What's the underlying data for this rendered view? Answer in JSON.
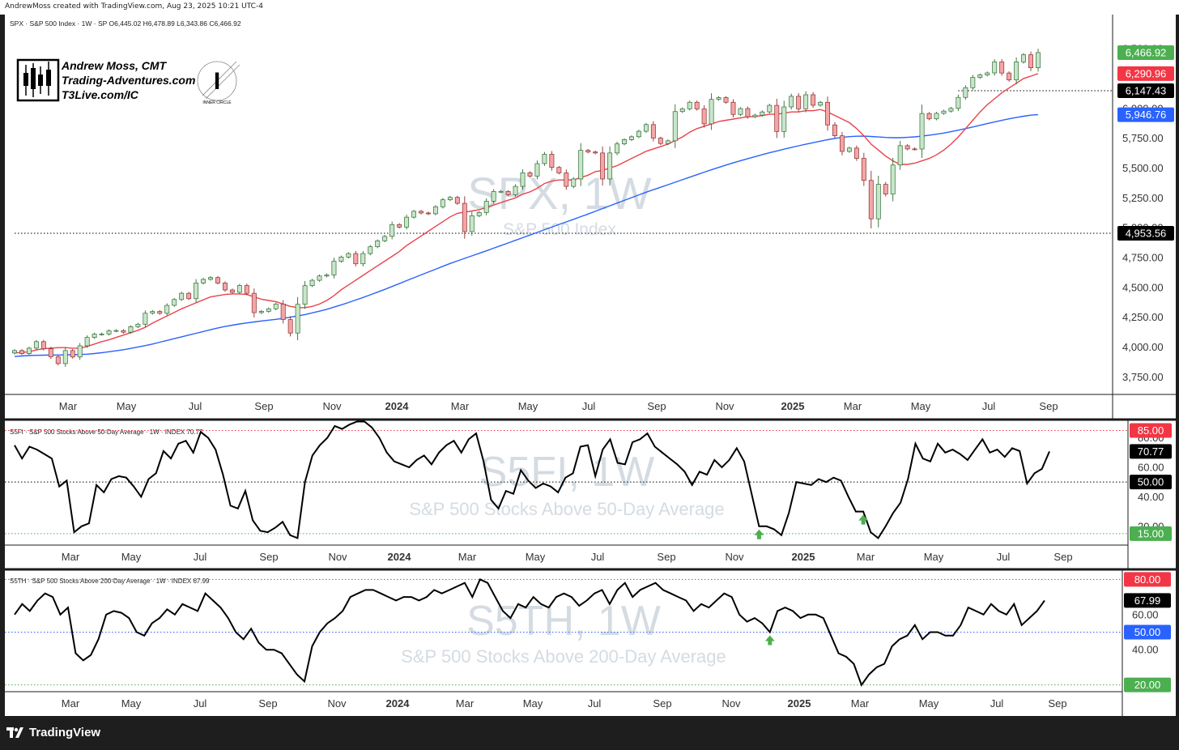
{
  "header_text": "AndrewMoss created with TradingView.com, Aug 23, 2025 10:21 UTC-4",
  "footer_brand": "TradingView",
  "branding": {
    "line1": "Andrew Moss, CMT",
    "line2": "Trading-Adventures.com",
    "line3": "T3Live.com/IC",
    "badge_letter": "I",
    "badge_text": "INNER CIRCLE"
  },
  "x_labels": [
    "Mar",
    "May",
    "Jul",
    "Sep",
    "Nov",
    "2024",
    "Mar",
    "May",
    "Jul",
    "Sep",
    "Nov",
    "2025",
    "Mar",
    "May",
    "Jul",
    "Sep"
  ],
  "x_label_bold": [
    false,
    false,
    false,
    false,
    false,
    true,
    false,
    false,
    false,
    false,
    false,
    true,
    false,
    false,
    false,
    false
  ],
  "colors": {
    "up": "#c8e6c9",
    "down": "#f4a6a6",
    "up_border": "#2f6b33",
    "down_border": "#8b2d2d",
    "sma_red": "#e8434a",
    "sma_blue": "#2962ff",
    "green_tag": "#4caf50",
    "red_tag": "#f23645",
    "blue_tag": "#2962ff",
    "black_tag": "#000000",
    "watermark": "#c9d2db"
  },
  "chart_data": [
    {
      "type": "candlestick",
      "symbol_line": "SPX · S&P 500 Index · 1W · SP  O6,445.02  H6,478.89  L6,343.86  C6,466.92",
      "watermark_title": "SPX, 1W",
      "watermark_subtitle": "S&P 500 Index",
      "y_ticks": [
        "6,500.00",
        "6,000.00",
        "5,750.00",
        "5,500.00",
        "5,250.00",
        "5,000.00",
        "4,750.00",
        "4,500.00",
        "4,250.00",
        "4,000.00",
        "3,750.00"
      ],
      "y_tick_values": [
        6500,
        6000,
        5750,
        5500,
        5250,
        5000,
        4750,
        4500,
        4250,
        4000,
        3750
      ],
      "ylim": [
        3650,
        6650
      ],
      "price_tags": [
        {
          "label": "6,466.92",
          "value": 6466.92,
          "color": "green"
        },
        {
          "label": "6,290.96",
          "value": 6290.96,
          "color": "red"
        },
        {
          "label": "6,147.43",
          "value": 6147.43,
          "color": "black"
        },
        {
          "label": "5,946.76",
          "value": 5946.76,
          "color": "blue"
        },
        {
          "label": "4,953.56",
          "value": 4953.56,
          "color": "black"
        }
      ],
      "levels": [
        {
          "value": 6147.43,
          "from_week": 130
        },
        {
          "value": 4953.56,
          "from_week": 0
        }
      ],
      "closes": [
        3970,
        3945,
        3990,
        4045,
        3985,
        3918,
        3861,
        3970,
        3916,
        4010,
        4080,
        4108,
        4109,
        4136,
        4138,
        4124,
        4170,
        4191,
        4283,
        4298,
        4282,
        4349,
        4398,
        4450,
        4405,
        4536,
        4567,
        4582,
        4536,
        4478,
        4458,
        4515,
        4450,
        4288,
        4299,
        4320,
        4360,
        4230,
        4117,
        4358,
        4514,
        4559,
        4595,
        4604,
        4719,
        4754,
        4783,
        4697,
        4783,
        4840,
        4890,
        4927,
        5026,
        5005,
        5088,
        5137,
        5123,
        5117,
        5175,
        5234,
        5254,
        5204,
        4967,
        5100,
        5127,
        5222,
        5303,
        5304,
        5277,
        5346,
        5460,
        5432,
        5537,
        5615,
        5505,
        5459,
        5346,
        5408,
        5648,
        5634,
        5626,
        5408,
        5626,
        5702,
        5738,
        5762,
        5808,
        5864,
        5751,
        5705,
        5728,
        5973,
        5996,
        6051,
        5995,
        5870,
        6075,
        6090,
        6051,
        5949,
        5998,
        5930,
        5943,
        5970,
        6025,
        5806,
        6012,
        6101,
        5996,
        6114,
        6026,
        6051,
        5861,
        5770,
        5639,
        5667,
        5581,
        5396,
        5074,
        5363,
        5282,
        5525,
        5687,
        5660,
        5659,
        5957,
        5912,
        5958,
        5977,
        6000,
        6092,
        6173,
        6259,
        6280,
        6297,
        6389,
        6296,
        6238,
        6389,
        6449,
        6340,
        6466.92
      ],
      "sma20": [
        3950,
        3955,
        3960,
        3975,
        3985,
        3990,
        3995,
        3995,
        3990,
        3990,
        4005,
        4025,
        4045,
        4060,
        4080,
        4100,
        4120,
        4140,
        4165,
        4200,
        4230,
        4260,
        4290,
        4320,
        4345,
        4370,
        4395,
        4420,
        4430,
        4440,
        4445,
        4445,
        4440,
        4420,
        4400,
        4390,
        4380,
        4360,
        4340,
        4330,
        4330,
        4340,
        4360,
        4390,
        4430,
        4480,
        4520,
        4560,
        4600,
        4640,
        4680,
        4720,
        4760,
        4800,
        4850,
        4890,
        4930,
        4970,
        5010,
        5050,
        5090,
        5120,
        5130,
        5140,
        5150,
        5170,
        5190,
        5210,
        5230,
        5250,
        5280,
        5300,
        5330,
        5370,
        5390,
        5400,
        5400,
        5400,
        5420,
        5440,
        5470,
        5480,
        5500,
        5520,
        5550,
        5580,
        5610,
        5640,
        5660,
        5680,
        5700,
        5730,
        5760,
        5800,
        5830,
        5850,
        5870,
        5890,
        5900,
        5910,
        5920,
        5930,
        5930,
        5940,
        5950,
        5950,
        5960,
        5970,
        5970,
        5980,
        5980,
        5990,
        5970,
        5940,
        5910,
        5880,
        5830,
        5770,
        5700,
        5650,
        5600,
        5560,
        5530,
        5530,
        5540,
        5560,
        5580,
        5610,
        5650,
        5700,
        5760,
        5830,
        5900,
        5970,
        6030,
        6080,
        6130,
        6170,
        6210,
        6250,
        6270,
        6290.96
      ],
      "sma50": [
        3920,
        3925,
        3928,
        3930,
        3932,
        3933,
        3933,
        3934,
        3935,
        3937,
        3940,
        3945,
        3952,
        3960,
        3968,
        3977,
        3988,
        4000,
        4012,
        4025,
        4040,
        4055,
        4070,
        4085,
        4100,
        4115,
        4130,
        4145,
        4160,
        4172,
        4183,
        4193,
        4202,
        4210,
        4218,
        4225,
        4232,
        4240,
        4250,
        4260,
        4272,
        4286,
        4300,
        4316,
        4334,
        4353,
        4373,
        4394,
        4415,
        4437,
        4460,
        4483,
        4507,
        4531,
        4556,
        4580,
        4604,
        4628,
        4652,
        4676,
        4700,
        4722,
        4743,
        4764,
        4785,
        4806,
        4828,
        4850,
        4872,
        4894,
        4916,
        4938,
        4960,
        4983,
        5005,
        5027,
        5048,
        5070,
        5092,
        5114,
        5137,
        5160,
        5183,
        5206,
        5229,
        5252,
        5275,
        5297,
        5318,
        5339,
        5360,
        5381,
        5402,
        5423,
        5444,
        5465,
        5485,
        5505,
        5525,
        5543,
        5561,
        5578,
        5595,
        5612,
        5628,
        5643,
        5658,
        5672,
        5686,
        5699,
        5712,
        5725,
        5737,
        5748,
        5757,
        5763,
        5766,
        5767,
        5764,
        5760,
        5756,
        5754,
        5754,
        5757,
        5761,
        5767,
        5775,
        5783,
        5793,
        5804,
        5817,
        5830,
        5844,
        5858,
        5872,
        5886,
        5899,
        5912,
        5923,
        5934,
        5943,
        5946.76
      ]
    },
    {
      "type": "line",
      "symbol_line": "S5FI · S&P 500 Stocks Above 50-Day Average · 1W · INDEX  70.77",
      "watermark_title": "S5FI, 1W",
      "watermark_subtitle": "S&P 500 Stocks Above 50-Day Average",
      "y_ticks": [
        "85.00",
        "80.00",
        "60.00",
        "50.00",
        "40.00",
        "20.00",
        "15.00"
      ],
      "y_tick_values": [
        85,
        80,
        60,
        50,
        40,
        20,
        15
      ],
      "ylim": [
        10,
        88
      ],
      "price_tags": [
        {
          "label": "85.00",
          "value": 85,
          "color": "red"
        },
        {
          "label": "70.77",
          "value": 70.77,
          "color": "black"
        },
        {
          "label": "50.00",
          "value": 50,
          "color": "black"
        },
        {
          "label": "15.00",
          "value": 15,
          "color": "green"
        }
      ],
      "levels": [
        {
          "value": 85,
          "style": "red-dotted"
        },
        {
          "value": 50,
          "style": "black-dotted"
        },
        {
          "value": 15,
          "style": "green-dotted"
        }
      ],
      "arrow_weeks": [
        100,
        114
      ],
      "values": [
        75,
        66,
        74,
        72,
        69,
        66,
        47,
        51,
        16,
        20,
        22,
        48,
        43,
        52,
        54,
        53,
        47,
        40,
        52,
        56,
        71,
        66,
        76,
        78,
        70,
        84,
        80,
        72,
        55,
        34,
        32,
        44,
        24,
        17,
        16,
        19,
        23,
        14,
        12,
        50,
        68,
        75,
        80,
        88,
        86,
        89,
        91,
        91,
        87,
        80,
        70,
        64,
        62,
        60,
        65,
        68,
        62,
        70,
        75,
        78,
        70,
        79,
        83,
        64,
        38,
        32,
        44,
        42,
        58,
        51,
        46,
        49,
        47,
        43,
        53,
        56,
        74,
        75,
        54,
        72,
        79,
        63,
        62,
        77,
        79,
        83,
        74,
        70,
        66,
        62,
        57,
        48,
        57,
        55,
        65,
        60,
        65,
        73,
        64,
        42,
        20,
        20,
        18,
        14,
        29,
        50,
        49,
        48,
        52,
        50,
        53,
        51,
        40,
        30,
        30,
        16,
        12,
        20,
        29,
        36,
        52,
        76,
        66,
        64,
        76,
        70,
        72,
        69,
        65,
        72,
        79,
        70,
        72,
        67,
        73,
        71,
        49,
        56,
        59,
        70.77
      ]
    },
    {
      "type": "line",
      "symbol_line": "S5TH · S&P 500 Stocks Above 200-Day Average · 1W · INDEX  67.99",
      "watermark_title": "S5TH, 1W",
      "watermark_subtitle": "S&P 500 Stocks Above 200-Day Average",
      "y_ticks": [
        "80.00",
        "67.99",
        "60.00",
        "50.00",
        "40.00",
        "20.00"
      ],
      "y_tick_values": [
        80,
        67.99,
        60,
        50,
        40,
        20
      ],
      "ylim": [
        18,
        82
      ],
      "price_tags": [
        {
          "label": "80.00",
          "value": 80,
          "color": "red"
        },
        {
          "label": "67.99",
          "value": 67.99,
          "color": "black"
        },
        {
          "label": "50.00",
          "value": 50,
          "color": "blue"
        },
        {
          "label": "20.00",
          "value": 20,
          "color": "green"
        }
      ],
      "levels": [
        {
          "value": 80,
          "style": "red-dotted"
        },
        {
          "value": 50,
          "style": "blue-dotted"
        },
        {
          "value": 20,
          "style": "green-dotted"
        }
      ],
      "arrow_weeks": [
        99
      ],
      "values": [
        60,
        66,
        62,
        68,
        72,
        70,
        60,
        64,
        38,
        34,
        37,
        46,
        60,
        62,
        61,
        58,
        50,
        48,
        55,
        58,
        63,
        60,
        66,
        64,
        62,
        72,
        68,
        64,
        58,
        50,
        46,
        52,
        44,
        40,
        40,
        38,
        32,
        26,
        22,
        42,
        50,
        55,
        58,
        62,
        70,
        72,
        74,
        74,
        72,
        70,
        68,
        70,
        70,
        68,
        70,
        74,
        72,
        74,
        76,
        78,
        70,
        80,
        78,
        70,
        62,
        58,
        66,
        64,
        70,
        66,
        64,
        70,
        72,
        70,
        65,
        68,
        72,
        74,
        66,
        74,
        78,
        70,
        74,
        76,
        78,
        74,
        72,
        70,
        68,
        62,
        66,
        64,
        68,
        72,
        70,
        60,
        56,
        58,
        55,
        50,
        62,
        64,
        62,
        58,
        60,
        60,
        58,
        48,
        38,
        36,
        32,
        20,
        26,
        30,
        32,
        42,
        46,
        48,
        54,
        46,
        50,
        50,
        48,
        48,
        54,
        64,
        62,
        60,
        66,
        62,
        60,
        66,
        54,
        58,
        62,
        67.99
      ]
    }
  ]
}
